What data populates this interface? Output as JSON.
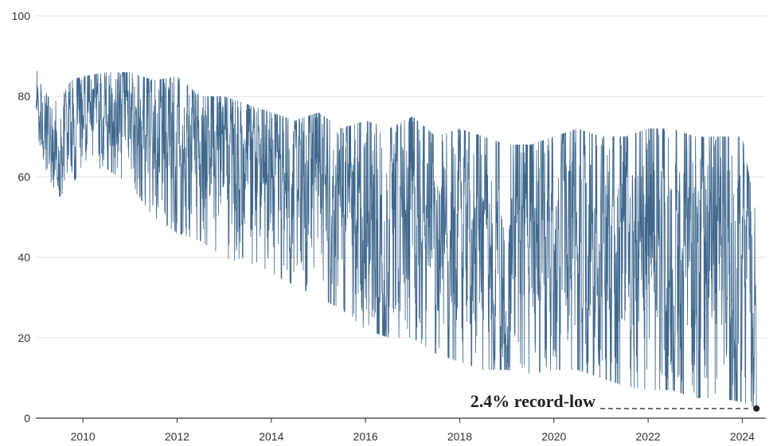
{
  "chart_data": {
    "type": "line",
    "title": "",
    "xlabel": "",
    "ylabel": "",
    "xlim": [
      2009.0,
      2024.5
    ],
    "ylim": [
      0,
      100
    ],
    "y_ticks": [
      0,
      20,
      40,
      60,
      80,
      100
    ],
    "x_ticks": [
      2010,
      2012,
      2014,
      2016,
      2018,
      2020,
      2022,
      2024
    ],
    "grid": "horizontal",
    "legend": "none",
    "colors": {
      "series": "#1f4e79",
      "grid": "#e3e3e3",
      "axis": "#333333"
    },
    "series": [
      {
        "envelope": [
          {
            "x": 2009.0,
            "low": 72,
            "high": 88
          },
          {
            "x": 2009.25,
            "low": 60,
            "high": 80
          },
          {
            "x": 2009.5,
            "low": 55,
            "high": 79
          },
          {
            "x": 2009.75,
            "low": 58,
            "high": 84
          },
          {
            "x": 2010.0,
            "low": 62,
            "high": 85
          },
          {
            "x": 2010.5,
            "low": 62,
            "high": 86
          },
          {
            "x": 2011.0,
            "low": 58,
            "high": 86
          },
          {
            "x": 2011.5,
            "low": 50,
            "high": 84
          },
          {
            "x": 2012.0,
            "low": 46,
            "high": 85
          },
          {
            "x": 2012.5,
            "low": 44,
            "high": 80
          },
          {
            "x": 2013.0,
            "low": 40,
            "high": 80
          },
          {
            "x": 2013.5,
            "low": 38,
            "high": 78
          },
          {
            "x": 2014.0,
            "low": 36,
            "high": 76
          },
          {
            "x": 2014.5,
            "low": 33,
            "high": 74
          },
          {
            "x": 2015.0,
            "low": 30,
            "high": 76
          },
          {
            "x": 2015.5,
            "low": 27,
            "high": 72
          },
          {
            "x": 2016.0,
            "low": 22,
            "high": 74
          },
          {
            "x": 2016.5,
            "low": 20,
            "high": 72
          },
          {
            "x": 2017.0,
            "low": 20,
            "high": 75
          },
          {
            "x": 2017.5,
            "low": 16,
            "high": 70
          },
          {
            "x": 2018.0,
            "low": 14,
            "high": 72
          },
          {
            "x": 2018.5,
            "low": 12,
            "high": 70
          },
          {
            "x": 2019.0,
            "low": 12,
            "high": 68
          },
          {
            "x": 2019.5,
            "low": 11,
            "high": 68
          },
          {
            "x": 2020.0,
            "low": 12,
            "high": 70
          },
          {
            "x": 2020.5,
            "low": 12,
            "high": 72
          },
          {
            "x": 2021.0,
            "low": 10,
            "high": 70
          },
          {
            "x": 2021.5,
            "low": 8,
            "high": 70
          },
          {
            "x": 2022.0,
            "low": 7,
            "high": 72
          },
          {
            "x": 2022.5,
            "low": 7,
            "high": 72
          },
          {
            "x": 2023.0,
            "low": 5,
            "high": 70
          },
          {
            "x": 2023.5,
            "low": 5,
            "high": 70
          },
          {
            "x": 2024.0,
            "low": 4,
            "high": 70
          },
          {
            "x": 2024.3,
            "low": 2.4,
            "high": 50
          }
        ]
      }
    ],
    "annotation": {
      "text": "2.4% record-low",
      "x": 2024.3,
      "y": 2.4
    }
  }
}
